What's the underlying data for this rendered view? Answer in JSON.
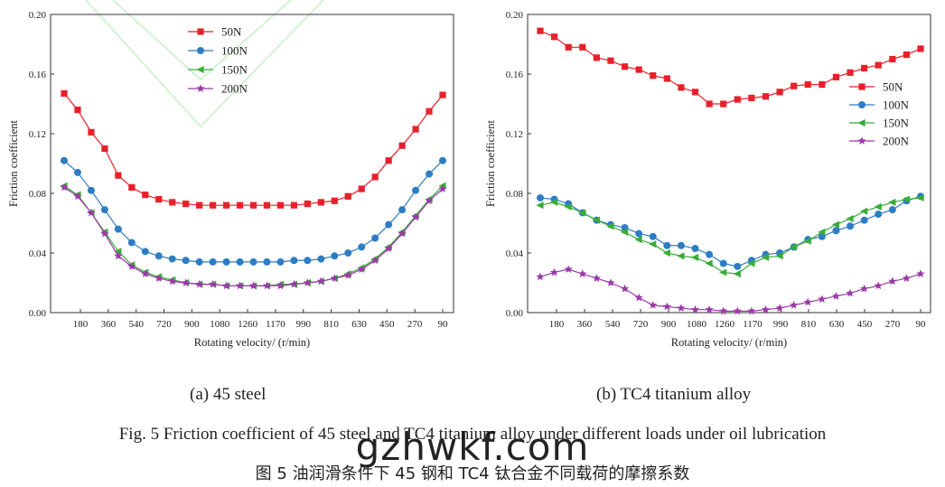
{
  "chart_data": [
    {
      "type": "line",
      "id": "a",
      "title": "",
      "xlabel": "Rotating velocity/ (r/min)",
      "ylabel": "Friction coefficient",
      "x_tick_labels": [
        "180",
        "360",
        "540",
        "720",
        "900",
        "1080",
        "1260",
        "1170",
        "990",
        "810",
        "630",
        "450",
        "270",
        "90"
      ],
      "ylim": [
        0,
        0.2
      ],
      "y_ticks": [
        "0.00",
        "0.04",
        "0.08",
        "0.12",
        "0.16",
        "0.20"
      ],
      "legend_position": "top-center",
      "series": [
        {
          "name": "50N",
          "color": "#e8202a",
          "marker": "square",
          "values": [
            0.147,
            0.136,
            0.121,
            0.11,
            0.092,
            0.084,
            0.079,
            0.076,
            0.074,
            0.073,
            0.072,
            0.072,
            0.072,
            0.072,
            0.072,
            0.072,
            0.072,
            0.072,
            0.073,
            0.074,
            0.075,
            0.078,
            0.083,
            0.091,
            0.102,
            0.112,
            0.123,
            0.135,
            0.146
          ]
        },
        {
          "name": "100N",
          "color": "#2e7dc4",
          "marker": "circle",
          "values": [
            0.102,
            0.094,
            0.082,
            0.069,
            0.056,
            0.047,
            0.041,
            0.038,
            0.036,
            0.035,
            0.034,
            0.034,
            0.034,
            0.034,
            0.034,
            0.034,
            0.034,
            0.035,
            0.035,
            0.036,
            0.038,
            0.04,
            0.044,
            0.05,
            0.059,
            0.069,
            0.082,
            0.093,
            0.102
          ]
        },
        {
          "name": "150N",
          "color": "#3aac3a",
          "marker": "triangle-left",
          "values": [
            0.085,
            0.079,
            0.067,
            0.054,
            0.041,
            0.032,
            0.027,
            0.024,
            0.022,
            0.02,
            0.019,
            0.019,
            0.018,
            0.018,
            0.018,
            0.018,
            0.019,
            0.019,
            0.02,
            0.021,
            0.023,
            0.026,
            0.03,
            0.036,
            0.044,
            0.054,
            0.065,
            0.076,
            0.085
          ]
        },
        {
          "name": "200N",
          "color": "#9b3aa8",
          "marker": "star",
          "values": [
            0.084,
            0.078,
            0.067,
            0.053,
            0.038,
            0.031,
            0.026,
            0.023,
            0.021,
            0.02,
            0.019,
            0.019,
            0.018,
            0.018,
            0.018,
            0.018,
            0.018,
            0.019,
            0.02,
            0.021,
            0.023,
            0.025,
            0.029,
            0.035,
            0.043,
            0.053,
            0.064,
            0.075,
            0.083
          ]
        }
      ]
    },
    {
      "type": "line",
      "id": "b",
      "title": "",
      "xlabel": "Rotating velocity/ (r/min)",
      "ylabel": "Friction coefficient",
      "x_tick_labels": [
        "180",
        "360",
        "540",
        "720",
        "900",
        "1080",
        "1260",
        "1170",
        "990",
        "810",
        "630",
        "450",
        "270",
        "90"
      ],
      "ylim": [
        0,
        0.2
      ],
      "y_ticks": [
        "0.00",
        "0.04",
        "0.08",
        "0.12",
        "0.16",
        "0.20"
      ],
      "legend_position": "middle-right",
      "series": [
        {
          "name": "50N",
          "color": "#e8202a",
          "marker": "square",
          "values": [
            0.189,
            0.185,
            0.178,
            0.178,
            0.171,
            0.169,
            0.165,
            0.163,
            0.159,
            0.157,
            0.151,
            0.148,
            0.14,
            0.14,
            0.143,
            0.144,
            0.145,
            0.148,
            0.152,
            0.153,
            0.153,
            0.158,
            0.161,
            0.164,
            0.166,
            0.17,
            0.173,
            0.177
          ]
        },
        {
          "name": "100N",
          "color": "#2e7dc4",
          "marker": "circle",
          "values": [
            0.077,
            0.076,
            0.073,
            0.067,
            0.062,
            0.059,
            0.057,
            0.053,
            0.051,
            0.045,
            0.045,
            0.043,
            0.039,
            0.033,
            0.031,
            0.035,
            0.039,
            0.04,
            0.044,
            0.049,
            0.051,
            0.055,
            0.058,
            0.062,
            0.066,
            0.069,
            0.075,
            0.078
          ]
        },
        {
          "name": "150N",
          "color": "#3aac3a",
          "marker": "triangle-left",
          "values": [
            0.072,
            0.074,
            0.071,
            0.067,
            0.062,
            0.058,
            0.054,
            0.049,
            0.046,
            0.04,
            0.038,
            0.037,
            0.033,
            0.027,
            0.026,
            0.033,
            0.037,
            0.038,
            0.044,
            0.048,
            0.054,
            0.059,
            0.063,
            0.068,
            0.071,
            0.074,
            0.076,
            0.077
          ]
        },
        {
          "name": "200N",
          "color": "#9b3aa8",
          "marker": "star",
          "values": [
            0.024,
            0.027,
            0.029,
            0.026,
            0.023,
            0.02,
            0.016,
            0.01,
            0.005,
            0.004,
            0.003,
            0.002,
            0.002,
            0.001,
            0.001,
            0.001,
            0.002,
            0.003,
            0.005,
            0.007,
            0.009,
            0.011,
            0.013,
            0.016,
            0.018,
            0.021,
            0.023,
            0.026
          ]
        }
      ]
    }
  ],
  "captions": {
    "a": "(a) 45 steel",
    "b": "(b) TC4 titanium alloy",
    "figure_en": "Fig. 5 Friction coefficient of 45 steel and TC4 titanium alloy under different loads under oil lubrication",
    "figure_cn": "图 5 油润滑条件下 45 钢和 TC4 钛合金不同载荷的摩擦系数",
    "watermark": "gzhwkf.com"
  },
  "colors": {
    "axis": "#333333",
    "text": "#222222",
    "decor": "#c9f2c9"
  }
}
